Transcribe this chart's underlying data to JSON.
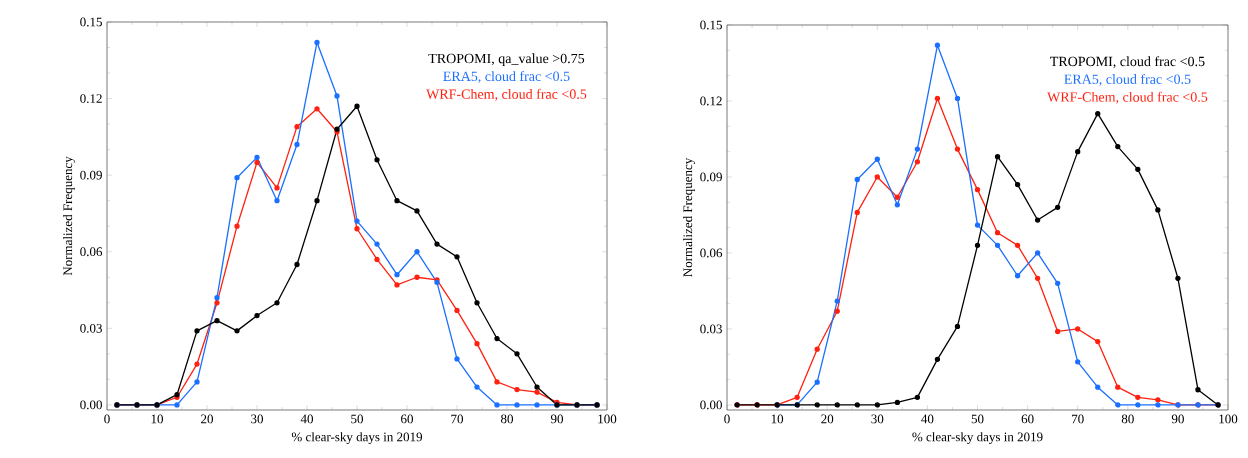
{
  "chart_data": [
    {
      "type": "line",
      "xlabel": "% clear-sky days in 2019",
      "ylabel": "Normalized Frequency",
      "x": [
        2,
        6,
        10,
        14,
        18,
        22,
        26,
        30,
        34,
        38,
        42,
        46,
        50,
        54,
        58,
        62,
        66,
        70,
        74,
        78,
        82,
        86,
        90,
        94,
        98
      ],
      "series": [
        {
          "name": "TROPOMI, qa_value >0.75",
          "color": "#000000",
          "values": [
            0,
            0,
            0,
            0.004,
            0.029,
            0.033,
            0.029,
            0.035,
            0.04,
            0.055,
            0.08,
            0.108,
            0.117,
            0.096,
            0.08,
            0.076,
            0.063,
            0.058,
            0.04,
            0.026,
            0.02,
            0.007,
            0,
            0,
            0
          ]
        },
        {
          "name": "ERA5, cloud frac <0.5",
          "color": "#1a6fff",
          "values": [
            0,
            0,
            0,
            0,
            0.009,
            0.042,
            0.089,
            0.097,
            0.08,
            0.102,
            0.142,
            0.121,
            0.072,
            0.063,
            0.051,
            0.06,
            0.048,
            0.018,
            0.007,
            0,
            0,
            0,
            0,
            0,
            0
          ]
        },
        {
          "name": "WRF-Chem, cloud frac <0.5",
          "color": "#ff2010",
          "values": [
            0,
            0,
            0,
            0.003,
            0.016,
            0.04,
            0.07,
            0.095,
            0.085,
            0.109,
            0.116,
            0.107,
            0.069,
            0.057,
            0.047,
            0.05,
            0.049,
            0.037,
            0.024,
            0.009,
            0.006,
            0.005,
            0.001,
            0,
            0
          ]
        }
      ],
      "xlim": [
        0,
        100
      ],
      "xticks": [
        0,
        10,
        20,
        30,
        40,
        50,
        60,
        70,
        80,
        90,
        100
      ],
      "ylim": [
        -0.002,
        0.15
      ],
      "yticks": [
        {
          "value": 0,
          "label": "0.00"
        },
        {
          "value": 0.03,
          "label": "0.03"
        },
        {
          "value": 0.06,
          "label": "0.06"
        },
        {
          "value": 0.09,
          "label": "0.09"
        },
        {
          "value": 0.12,
          "label": "0.12"
        },
        {
          "value": 0.15,
          "label": "0.15"
        }
      ],
      "legend": "top right",
      "marker": "circle",
      "line_style": "solid",
      "grid": false
    },
    {
      "type": "line",
      "xlabel": "% clear-sky days in 2019",
      "ylabel": "Normalized Frequency",
      "x": [
        2,
        6,
        10,
        14,
        18,
        22,
        26,
        30,
        34,
        38,
        42,
        46,
        50,
        54,
        58,
        62,
        66,
        70,
        74,
        78,
        82,
        86,
        90,
        94,
        98
      ],
      "series": [
        {
          "name": "TROPOMI, cloud frac <0.5",
          "color": "#000000",
          "values": [
            0,
            0,
            0,
            0,
            0,
            0,
            0,
            0,
            0.001,
            0.003,
            0.018,
            0.031,
            0.063,
            0.098,
            0.087,
            0.073,
            0.078,
            0.1,
            0.115,
            0.102,
            0.093,
            0.077,
            0.05,
            0.006,
            0
          ]
        },
        {
          "name": "ERA5, cloud frac <0.5",
          "color": "#1a6fff",
          "values": [
            null,
            null,
            0,
            0,
            0.009,
            0.041,
            0.089,
            0.097,
            0.079,
            0.101,
            0.142,
            0.121,
            0.071,
            0.063,
            0.051,
            0.06,
            0.048,
            0.017,
            0.007,
            0,
            0,
            0,
            0,
            0,
            0
          ]
        },
        {
          "name": "WRF-Chem, cloud frac <0.5",
          "color": "#ff2010",
          "values": [
            0,
            0,
            0,
            0.003,
            0.022,
            0.037,
            0.076,
            0.09,
            0.082,
            0.096,
            0.121,
            0.101,
            0.085,
            0.068,
            0.063,
            0.05,
            0.029,
            0.03,
            0.025,
            0.007,
            0.003,
            0.002,
            0,
            0,
            0
          ]
        }
      ],
      "xlim": [
        0,
        100
      ],
      "xticks": [
        0,
        10,
        20,
        30,
        40,
        50,
        60,
        70,
        80,
        90,
        100
      ],
      "ylim": [
        -0.002,
        0.15
      ],
      "yticks": [
        {
          "value": 0,
          "label": "0.00"
        },
        {
          "value": 0.03,
          "label": "0.03"
        },
        {
          "value": 0.06,
          "label": "0.06"
        },
        {
          "value": 0.09,
          "label": "0.09"
        },
        {
          "value": 0.12,
          "label": "0.12"
        },
        {
          "value": 0.15,
          "label": "0.15"
        }
      ],
      "legend": "top right",
      "marker": "circle",
      "line_style": "solid",
      "grid": false
    }
  ]
}
